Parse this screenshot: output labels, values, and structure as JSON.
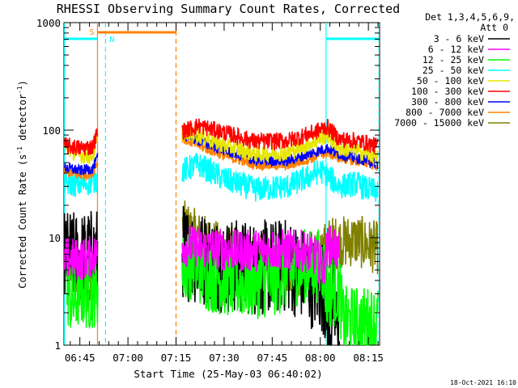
{
  "chart_data": {
    "type": "line",
    "title": "RHESSI Observing Summary Count Rates, Corrected",
    "xlabel": "Start Time (25-May-03 06:40:02)",
    "ylabel_main": "Corrected Count Rate (s",
    "ylabel_sup1": "-1",
    "ylabel_mid": " detector",
    "ylabel_sup2": "-1",
    "ylabel_end": ")",
    "y_scale": "log",
    "ylim": [
      1,
      1000
    ],
    "xlim_minutes": [
      40.03,
      138.5
    ],
    "x_ticks": [
      {
        "m": 45,
        "label": "06:45"
      },
      {
        "m": 60,
        "label": "07:00"
      },
      {
        "m": 75,
        "label": "07:15"
      },
      {
        "m": 90,
        "label": "07:30"
      },
      {
        "m": 105,
        "label": "07:45"
      },
      {
        "m": 120,
        "label": "08:00"
      },
      {
        "m": 135,
        "label": "08:15"
      }
    ],
    "y_ticks": [
      {
        "v": 1,
        "label": "1"
      },
      {
        "v": 10,
        "label": "10"
      },
      {
        "v": 100,
        "label": "100"
      },
      {
        "v": 1000,
        "label": "1000"
      }
    ],
    "legend_title_1": "Det 1,3,4,5,6,9,",
    "legend_title_2": "Att 0",
    "legend_position": "right",
    "series": [
      {
        "name": "3 - 6 keV",
        "color": "#000000",
        "level": 6.0,
        "amp": 0.45,
        "values": [
          [
            40.2,
            6.5
          ],
          [
            45,
            6.2
          ],
          [
            49,
            6.8
          ],
          [
            50.5,
            7
          ],
          [
            77,
            7.5
          ],
          [
            82,
            6.5
          ],
          [
            90,
            5.5
          ],
          [
            100,
            5.2
          ],
          [
            110,
            5.5
          ],
          [
            115,
            4.5
          ],
          [
            118,
            3.8
          ],
          [
            121,
            3.5
          ],
          [
            122,
            2.2
          ],
          [
            123,
            1.2
          ],
          [
            124,
            2.8
          ],
          [
            125,
            1.4
          ],
          [
            126,
            2.5
          ]
        ]
      },
      {
        "name": "6 - 12 keV",
        "color": "#ff00ff",
        "level": 8.0,
        "amp": 0.2,
        "values": [
          [
            40.2,
            6.5
          ],
          [
            45,
            6.2
          ],
          [
            49,
            6.8
          ],
          [
            50.5,
            7
          ],
          [
            77,
            8.5
          ],
          [
            85,
            8
          ],
          [
            95,
            7.5
          ],
          [
            105,
            7.8
          ],
          [
            115,
            7.5
          ],
          [
            118,
            7
          ],
          [
            121,
            5
          ],
          [
            122,
            8
          ],
          [
            124,
            8.5
          ],
          [
            126,
            7
          ]
        ]
      },
      {
        "name": "12 - 25 keV",
        "color": "#00ff00",
        "level": 4.0,
        "amp": 0.35,
        "values": [
          [
            41,
            3.3
          ],
          [
            43,
            2.5
          ],
          [
            45,
            3.3
          ],
          [
            48,
            3
          ],
          [
            50,
            3.3
          ],
          [
            77,
            5
          ],
          [
            80,
            6
          ],
          [
            85,
            4.5
          ],
          [
            95,
            3.8
          ],
          [
            105,
            4
          ],
          [
            115,
            5.5
          ],
          [
            121,
            5.5
          ],
          [
            122,
            3
          ],
          [
            126,
            3.5
          ],
          [
            127,
            1.6
          ],
          [
            138,
            1.6
          ]
        ]
      },
      {
        "name": "25 - 50 keV",
        "color": "#00ffff",
        "level": 30,
        "amp": 0.12,
        "values": [
          [
            40.2,
            32
          ],
          [
            45,
            31
          ],
          [
            49,
            33
          ],
          [
            50.5,
            35
          ],
          [
            77,
            42
          ],
          [
            82,
            48
          ],
          [
            90,
            35
          ],
          [
            100,
            28
          ],
          [
            110,
            30
          ],
          [
            115,
            35
          ],
          [
            120,
            42
          ],
          [
            122,
            38
          ],
          [
            126,
            30
          ],
          [
            131,
            32
          ],
          [
            135,
            28
          ],
          [
            138,
            27
          ]
        ]
      },
      {
        "name": "50 - 100 keV",
        "color": "#e6e600",
        "level": 60,
        "amp": 0.08,
        "values": [
          [
            40.2,
            70
          ],
          [
            45,
            58
          ],
          [
            49,
            58
          ],
          [
            50.5,
            80
          ],
          [
            77,
            95
          ],
          [
            82,
            90
          ],
          [
            90,
            72
          ],
          [
            100,
            60
          ],
          [
            110,
            62
          ],
          [
            118,
            78
          ],
          [
            122,
            90
          ],
          [
            126,
            68
          ],
          [
            131,
            65
          ],
          [
            135,
            60
          ],
          [
            138,
            56
          ]
        ]
      },
      {
        "name": "100 - 300 keV",
        "color": "#ff0000",
        "level": 75,
        "amp": 0.08,
        "values": [
          [
            40.2,
            72
          ],
          [
            45,
            68
          ],
          [
            49,
            70
          ],
          [
            50.5,
            95
          ],
          [
            77,
            98
          ],
          [
            82,
            110
          ],
          [
            90,
            95
          ],
          [
            100,
            78
          ],
          [
            110,
            80
          ],
          [
            118,
            95
          ],
          [
            122,
            108
          ],
          [
            126,
            82
          ],
          [
            131,
            80
          ],
          [
            135,
            75
          ],
          [
            138,
            70
          ]
        ]
      },
      {
        "name": "300 - 800 keV",
        "color": "#0000ff",
        "level": 55,
        "amp": 0.05,
        "values": [
          [
            40.2,
            45
          ],
          [
            45,
            42
          ],
          [
            49,
            44
          ],
          [
            50.5,
            55
          ],
          [
            77,
            90
          ],
          [
            82,
            80
          ],
          [
            90,
            65
          ],
          [
            100,
            52
          ],
          [
            110,
            52
          ],
          [
            118,
            62
          ],
          [
            122,
            68
          ],
          [
            126,
            60
          ],
          [
            131,
            55
          ],
          [
            135,
            52
          ],
          [
            138,
            48
          ]
        ]
      },
      {
        "name": "800 - 7000 keV",
        "color": "#ff8000",
        "level": 45,
        "amp": 0.05,
        "values": [
          [
            40.2,
            42
          ],
          [
            45,
            38
          ],
          [
            49,
            40
          ],
          [
            50.5,
            52
          ],
          [
            77,
            85
          ],
          [
            82,
            72
          ],
          [
            90,
            58
          ],
          [
            100,
            48
          ],
          [
            110,
            47
          ],
          [
            118,
            56
          ],
          [
            122,
            62
          ],
          [
            126,
            55
          ],
          [
            131,
            52
          ],
          [
            135,
            50
          ],
          [
            138,
            46
          ]
        ]
      },
      {
        "name": "7000 - 15000 keV",
        "color": "#808000",
        "level": 8.0,
        "amp": 0.25,
        "values": [
          [
            40.2,
            7
          ],
          [
            43,
            5
          ],
          [
            46,
            4
          ],
          [
            48,
            3.5
          ],
          [
            50,
            6
          ],
          [
            77,
            13
          ],
          [
            82,
            10
          ],
          [
            88,
            8
          ],
          [
            95,
            7
          ],
          [
            105,
            5.5
          ],
          [
            115,
            4.8
          ],
          [
            120,
            7
          ],
          [
            123,
            9
          ],
          [
            126,
            9
          ],
          [
            131,
            9.5
          ],
          [
            135,
            8.5
          ],
          [
            138,
            8
          ]
        ]
      }
    ],
    "state_bars": [
      {
        "label": "S",
        "color": "#ff8000",
        "x0": 50.5,
        "x1": 75.0
      },
      {
        "label": "N",
        "color": "#00ffff",
        "x0": 40.2,
        "x1": 50.5
      },
      {
        "label": "",
        "color": "#00ffff",
        "x0": 121.8,
        "x1": 138.3
      }
    ],
    "vlines": [
      {
        "x": 40.2,
        "color": "#00ffff",
        "style": "solid"
      },
      {
        "x": 50.5,
        "color": "#ff8000",
        "style": "solid"
      },
      {
        "x": 53.0,
        "color": "#00ffff",
        "style": "dashed"
      },
      {
        "x": 75.0,
        "color": "#ff8000",
        "style": "dashed"
      },
      {
        "x": 121.8,
        "color": "#00ffff",
        "style": "solid"
      },
      {
        "x": 138.3,
        "color": "#00ffff",
        "style": "dashed"
      }
    ],
    "gaps": [
      [
        50.6,
        76.9
      ]
    ]
  },
  "footer_date": "18-Oct-2021 16:10"
}
